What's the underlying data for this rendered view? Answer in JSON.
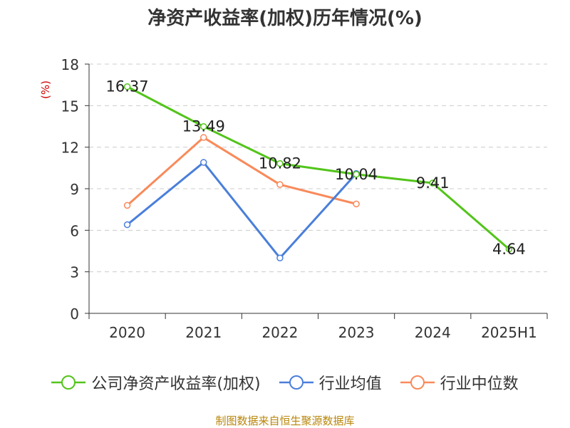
{
  "title": "净资产收益率(加权)历年情况(%)",
  "source_note": "制图数据来自恒生聚源数据库",
  "chart_data": {
    "type": "line",
    "title": "净资产收益率(加权)历年情况(%)",
    "ylabel": "(%)",
    "xlabel": "",
    "categories": [
      "2020",
      "2021",
      "2022",
      "2023",
      "2024",
      "2025H1"
    ],
    "ylim": [
      0,
      18
    ],
    "yticks": [
      0,
      3,
      6,
      9,
      12,
      15,
      18
    ],
    "grid": true,
    "legend_position": "bottom",
    "series": [
      {
        "name": "公司净资产收益率(加权)",
        "color": "#52c41a",
        "values": [
          16.37,
          13.49,
          10.82,
          10.04,
          9.41,
          4.64
        ],
        "data_labels": [
          "16.37",
          "13.49",
          "10.82",
          "10.04",
          "9.41",
          "4.64"
        ]
      },
      {
        "name": "行业均值",
        "color": "#4a7fdb",
        "values": [
          6.4,
          10.9,
          4.0,
          10.1,
          null,
          null
        ]
      },
      {
        "name": "行业中位数",
        "color": "#f98a5a",
        "values": [
          7.8,
          12.7,
          9.3,
          7.9,
          null,
          null
        ]
      }
    ]
  }
}
